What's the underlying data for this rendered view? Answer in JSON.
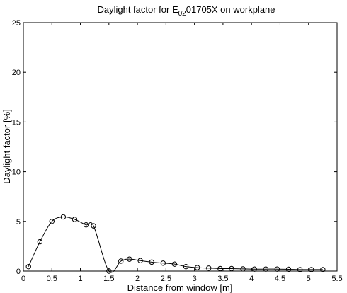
{
  "chart_data": {
    "type": "line",
    "title": {
      "prefix": "Daylight factor for E",
      "subscript": "02",
      "suffix": "01705X on workplane"
    },
    "xlabel": "Distance from window [m]",
    "ylabel": "Daylight factor [%]",
    "xlim": [
      0,
      5.5
    ],
    "ylim": [
      0,
      25
    ],
    "xticks": [
      0,
      0.5,
      1,
      1.5,
      2,
      2.5,
      3,
      3.5,
      4,
      4.5,
      5,
      5.5
    ],
    "xtick_labels": [
      "0",
      "0.5",
      "1",
      "1.5",
      "2",
      "2.5",
      "3",
      "3.5",
      "4",
      "4.5",
      "5",
      "5.5"
    ],
    "yticks": [
      0,
      5,
      10,
      15,
      20,
      25
    ],
    "ytick_labels": [
      "0",
      "5",
      "10",
      "15",
      "20",
      "25"
    ],
    "grid": false,
    "series": [
      {
        "marker": "circle",
        "color": "#000000",
        "x": [
          0.09,
          0.29,
          0.5,
          0.7,
          0.9,
          1.1,
          1.23,
          1.5,
          1.71,
          1.86,
          2.05,
          2.25,
          2.45,
          2.65,
          2.85,
          3.05,
          3.25,
          3.45,
          3.65,
          3.85,
          4.05,
          4.25,
          4.45,
          4.65,
          4.85,
          5.05,
          5.25
        ],
        "y": [
          0.45,
          2.95,
          5.0,
          5.45,
          5.2,
          4.65,
          4.55,
          0.0,
          1.0,
          1.2,
          1.05,
          0.9,
          0.8,
          0.7,
          0.45,
          0.35,
          0.3,
          0.25,
          0.25,
          0.22,
          0.2,
          0.2,
          0.2,
          0.18,
          0.15,
          0.15,
          0.15
        ]
      }
    ]
  }
}
